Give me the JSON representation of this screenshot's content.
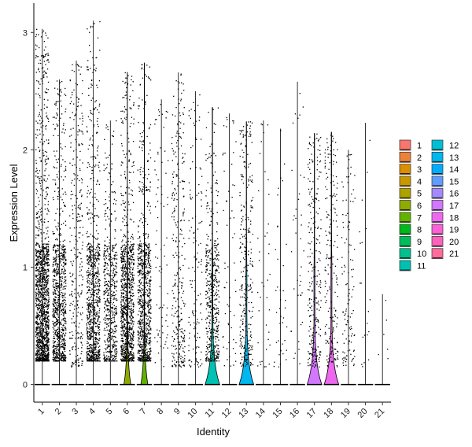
{
  "chart_data": {
    "type": "violin",
    "xlabel": "Identity",
    "ylabel": "Expression Level",
    "ylim": [
      -0.15,
      3.25
    ],
    "yticks": [
      0,
      1,
      2,
      3
    ],
    "grid": false,
    "legend_position": "right",
    "categories": [
      "1",
      "2",
      "3",
      "4",
      "5",
      "6",
      "7",
      "8",
      "9",
      "10",
      "11",
      "12",
      "13",
      "14",
      "15",
      "16",
      "17",
      "18",
      "19",
      "20",
      "21"
    ],
    "colors": [
      "#F8766D",
      "#EC8239",
      "#DB8E00",
      "#C79800",
      "#AEA200",
      "#8FAA00",
      "#64B200",
      "#00B81B",
      "#00BD5C",
      "#00C08D",
      "#00C1B2",
      "#00BFD4",
      "#00B7EF",
      "#00ACFC",
      "#619CFF",
      "#A58AFF",
      "#D277FF",
      "#EC69EF",
      "#FB61D7",
      "#FF62BC",
      "#FF6C9C"
    ],
    "series_stats": [
      {
        "cluster": "1",
        "max": 3.03,
        "dots": 1500,
        "violin_width": 0
      },
      {
        "cluster": "2",
        "max": 2.6,
        "dots": 900,
        "violin_width": 0
      },
      {
        "cluster": "3",
        "max": 2.76,
        "dots": 300,
        "violin_width": 0
      },
      {
        "cluster": "4",
        "max": 3.1,
        "dots": 900,
        "violin_width": 0
      },
      {
        "cluster": "5",
        "max": 2.25,
        "dots": 550,
        "violin_width": 0
      },
      {
        "cluster": "6",
        "max": 2.66,
        "dots": 1000,
        "violin_width": 0.45
      },
      {
        "cluster": "7",
        "max": 2.74,
        "dots": 850,
        "violin_width": 0.45
      },
      {
        "cluster": "8",
        "max": 2.43,
        "dots": 80,
        "violin_width": 0
      },
      {
        "cluster": "9",
        "max": 2.66,
        "dots": 300,
        "violin_width": 0
      },
      {
        "cluster": "10",
        "max": 2.5,
        "dots": 140,
        "violin_width": 0
      },
      {
        "cluster": "11",
        "max": 2.36,
        "dots": 450,
        "violin_width": 0.95
      },
      {
        "cluster": "12",
        "max": 2.31,
        "dots": 60,
        "violin_width": 0
      },
      {
        "cluster": "13",
        "max": 2.24,
        "dots": 300,
        "violin_width": 0.95
      },
      {
        "cluster": "14",
        "max": 2.25,
        "dots": 40,
        "violin_width": 0
      },
      {
        "cluster": "15",
        "max": 2.18,
        "dots": 40,
        "violin_width": 0
      },
      {
        "cluster": "16",
        "max": 2.58,
        "dots": 40,
        "violin_width": 0
      },
      {
        "cluster": "17",
        "max": 2.14,
        "dots": 250,
        "violin_width": 0.95
      },
      {
        "cluster": "18",
        "max": 2.15,
        "dots": 200,
        "violin_width": 0.95
      },
      {
        "cluster": "19",
        "max": 2.0,
        "dots": 120,
        "violin_width": 0
      },
      {
        "cluster": "20",
        "max": 2.23,
        "dots": 20,
        "violin_width": 0
      },
      {
        "cluster": "21",
        "max": 0.77,
        "dots": 6,
        "violin_width": 0
      }
    ]
  }
}
